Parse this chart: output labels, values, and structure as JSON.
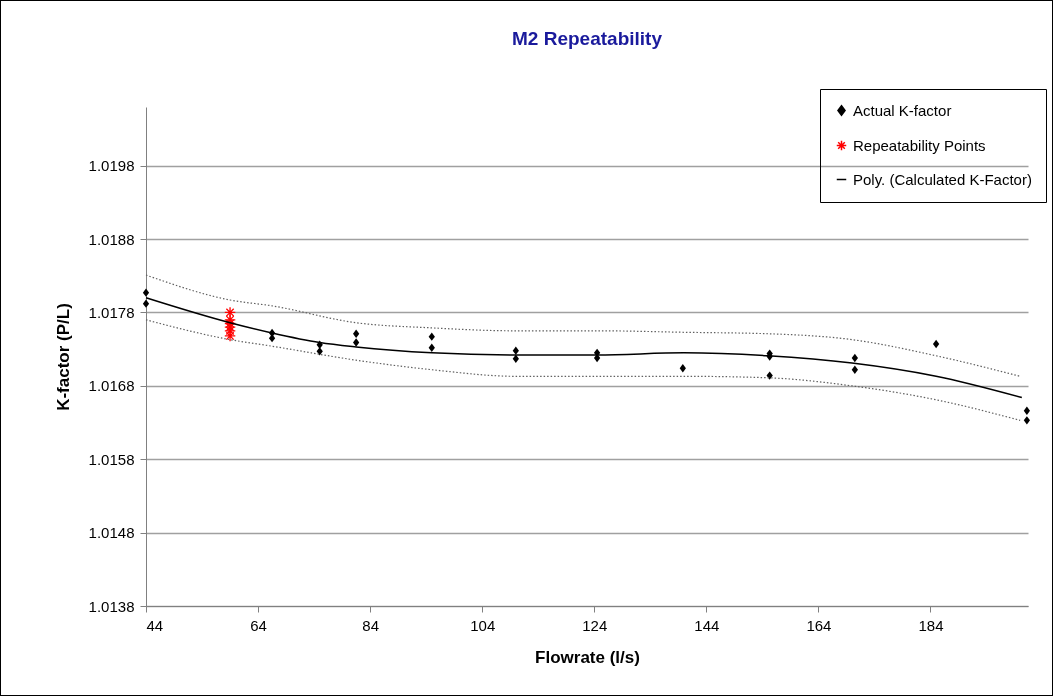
{
  "chart_data": {
    "type": "scatter",
    "title": "M2 Repeatability",
    "xlabel": "Flowrate (l/s)",
    "ylabel": "K-factor (P/L)",
    "xlim": [
      44,
      201.4
    ],
    "xticks": [
      44,
      64,
      84,
      104,
      124,
      144,
      164,
      184
    ],
    "ylim": [
      1.0138,
      1.0206
    ],
    "yticks": [
      1.0138,
      1.0148,
      1.0158,
      1.0168,
      1.0178,
      1.0188,
      1.0198
    ],
    "grid": "y",
    "legend": "top right",
    "series": [
      {
        "name": "Actual K-factor",
        "marker": "diamond",
        "color": "#000000",
        "x": [
          44,
          44,
          66.5,
          66.5,
          75,
          75,
          81.5,
          81.5,
          95,
          95,
          110,
          110,
          124.5,
          124.5,
          139.8,
          155.3,
          155.3,
          155.3,
          170.5,
          170.5,
          185,
          201.2,
          201.2
        ],
        "values": [
          1.01807,
          1.01792,
          1.01752,
          1.01745,
          1.01736,
          1.01727,
          1.01751,
          1.01739,
          1.01747,
          1.01732,
          1.01728,
          1.01717,
          1.01725,
          1.01718,
          1.01704,
          1.01724,
          1.0172,
          1.01694,
          1.01718,
          1.01702,
          1.01737,
          1.01646,
          1.01633
        ]
      },
      {
        "name": "Repeatability Points",
        "marker": "cross",
        "color": "#ff0000",
        "x": [
          59,
          59,
          59,
          59,
          59,
          59
        ],
        "values": [
          1.0178,
          1.0177,
          1.01765,
          1.0176,
          1.01755,
          1.01748
        ]
      },
      {
        "name": "Poly. (Calculated K-Factor)",
        "type": "line",
        "marker": "none",
        "line_style": "solid",
        "color": "#000000",
        "x": [
          44,
          59,
          66.5,
          75,
          81.5,
          95,
          110,
          124.5,
          140,
          155,
          170,
          185,
          200.3
        ],
        "values": [
          1.018,
          1.01766,
          1.01752,
          1.01739,
          1.01733,
          1.01725,
          1.01722,
          1.01722,
          1.01725,
          1.01721,
          1.01711,
          1.01693,
          1.01664
        ]
      },
      {
        "type": "line",
        "marker": "none",
        "line_style": "dotted",
        "color": "#606060",
        "x": [
          44,
          59,
          66.5,
          81.5,
          95,
          110,
          125,
          140,
          155,
          170,
          185,
          200
        ],
        "values": [
          1.01831,
          1.01797,
          1.01789,
          1.01766,
          1.01759,
          1.01755,
          1.01755,
          1.01753,
          1.01751,
          1.01743,
          1.01721,
          1.01693
        ]
      },
      {
        "type": "line",
        "marker": "none",
        "line_style": "dotted",
        "color": "#606060",
        "x": [
          44,
          59,
          66.5,
          81.5,
          95,
          110,
          125,
          140,
          155,
          170,
          185,
          200
        ],
        "values": [
          1.0177,
          1.01743,
          1.01734,
          1.01715,
          1.01702,
          1.01693,
          1.01693,
          1.01693,
          1.01691,
          1.0168,
          1.01661,
          1.01633
        ]
      }
    ]
  }
}
